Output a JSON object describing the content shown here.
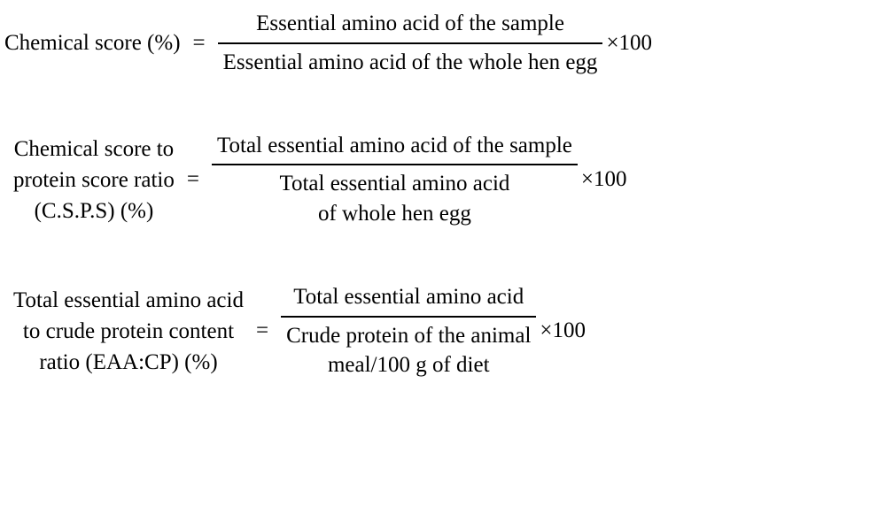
{
  "equations": [
    {
      "lhs": [
        "Chemical score (%)"
      ],
      "numerator": [
        "Essential amino acid of the sample"
      ],
      "denominator": [
        "Essential amino acid of the whole hen egg"
      ],
      "suffix": "×100"
    },
    {
      "lhs": [
        "Chemical score to",
        "protein score ratio",
        "(C.S.P.S) (%)"
      ],
      "numerator": [
        "Total essential amino acid of the sample"
      ],
      "denominator": [
        "Total essential amino acid",
        "of whole hen egg"
      ],
      "suffix": "×100"
    },
    {
      "lhs": [
        "Total essential amino acid",
        "to crude protein content",
        "ratio (EAA:CP) (%)"
      ],
      "numerator": [
        "Total essential amino acid"
      ],
      "denominator": [
        "Crude protein of the animal",
        "meal/100 g of diet"
      ],
      "suffix": "×100"
    }
  ],
  "style": {
    "font_family": "Times New Roman",
    "font_size_pt": 19,
    "text_color": "#000000",
    "background_color": "#ffffff"
  }
}
